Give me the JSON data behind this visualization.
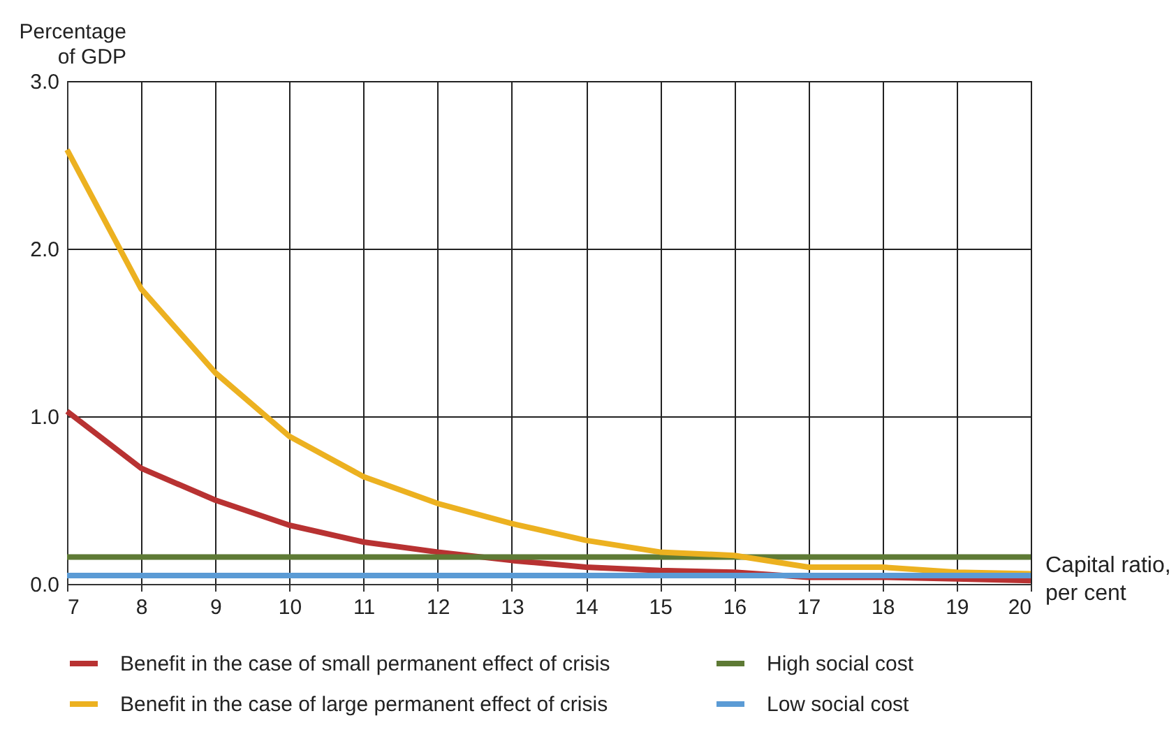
{
  "chart_data": {
    "type": "line",
    "xlabel": "Capital ratio, per cent",
    "ylabel": "Percentage of GDP",
    "x": [
      7,
      8,
      9,
      10,
      11,
      12,
      13,
      14,
      15,
      16,
      17,
      18,
      19,
      20
    ],
    "series": [
      {
        "name": "Benefit in the case of small permanent effect of crisis",
        "color": "#b83232",
        "values": [
          1.03,
          0.69,
          0.5,
          0.35,
          0.25,
          0.19,
          0.14,
          0.1,
          0.08,
          0.07,
          0.04,
          0.04,
          0.03,
          0.02
        ]
      },
      {
        "name": "High social cost",
        "color": "#5e7a35",
        "values": [
          0.16,
          0.16,
          0.16,
          0.16,
          0.16,
          0.16,
          0.16,
          0.16,
          0.16,
          0.16,
          0.16,
          0.16,
          0.16,
          0.16
        ]
      },
      {
        "name": "Benefit in the case of large permanent effect of crisis",
        "color": "#ecb120",
        "values": [
          2.59,
          1.76,
          1.26,
          0.88,
          0.64,
          0.48,
          0.36,
          0.26,
          0.19,
          0.17,
          0.1,
          0.1,
          0.07,
          0.06
        ]
      },
      {
        "name": "Low social cost",
        "color": "#5b9bd5",
        "values": [
          0.05,
          0.05,
          0.05,
          0.05,
          0.05,
          0.05,
          0.05,
          0.05,
          0.05,
          0.05,
          0.05,
          0.05,
          0.05,
          0.05
        ]
      }
    ],
    "xlim": [
      7,
      20
    ],
    "xticks": [
      7,
      8,
      9,
      10,
      11,
      12,
      13,
      14,
      15,
      16,
      17,
      18,
      19,
      20
    ],
    "ylim": [
      0,
      3
    ],
    "yticks": [
      {
        "value": 0,
        "label": "0.0"
      },
      {
        "value": 1,
        "label": "1.0"
      },
      {
        "value": 2,
        "label": "2.0"
      },
      {
        "value": 3,
        "label": "3.0"
      }
    ],
    "grid": true,
    "legend": "bottom",
    "marker": "none",
    "line_style": "solid"
  }
}
